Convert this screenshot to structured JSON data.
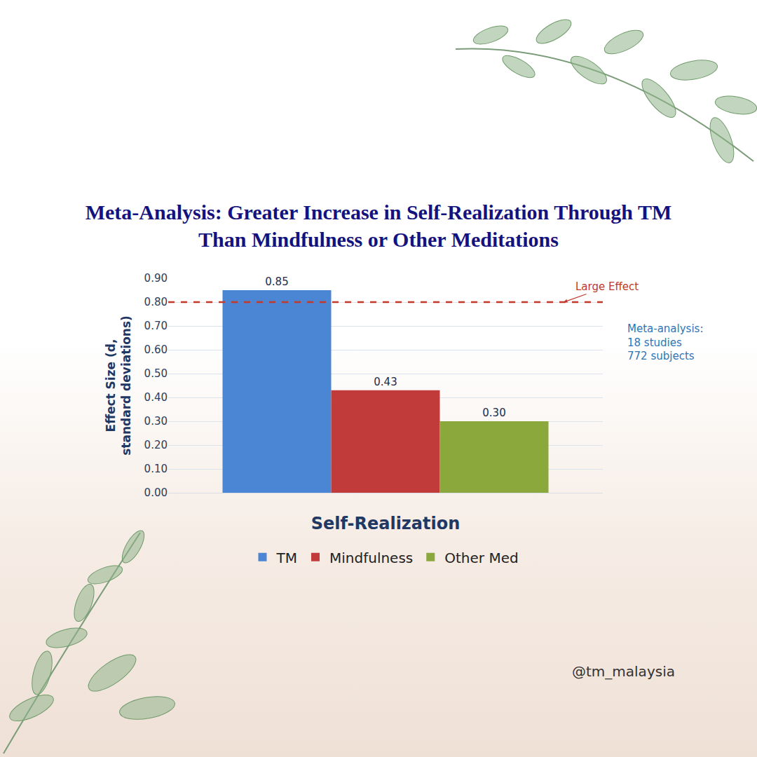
{
  "chart_data": {
    "type": "bar",
    "title": "Meta-Analysis: Greater Increase in Self-Realization Through TM Than Mindfulness or Other Meditations",
    "y_label": "Effect Size (d, standard deviations)",
    "categories": [
      "Self-Realization"
    ],
    "series": [
      {
        "name": "TM",
        "color": "#4a86d4",
        "values": [
          0.85
        ],
        "value_labels": [
          "0.85"
        ]
      },
      {
        "name": "Mindfulness",
        "color": "#c23b3b",
        "values": [
          0.43
        ],
        "value_labels": [
          "0.43"
        ]
      },
      {
        "name": "Other Med",
        "color": "#8aa83c",
        "values": [
          0.3
        ],
        "value_labels": [
          "0.30"
        ]
      }
    ],
    "ylim": [
      0,
      0.9
    ],
    "yticks": [
      {
        "value": 0,
        "label": "0.00"
      },
      {
        "value": 0.1,
        "label": "0.10"
      },
      {
        "value": 0.2,
        "label": "0.20"
      },
      {
        "value": 0.3,
        "label": "0.30"
      },
      {
        "value": 0.4,
        "label": "0.40"
      },
      {
        "value": 0.5,
        "label": "0.50"
      },
      {
        "value": 0.6,
        "label": "0.60"
      },
      {
        "value": 0.7,
        "label": "0.70"
      },
      {
        "value": 0.8,
        "label": "0.80"
      },
      {
        "value": 0.9,
        "label": "0.90"
      }
    ],
    "grid": true,
    "data_labels": true,
    "legend": "bottom",
    "reference_lines": [
      {
        "value": 0.8,
        "label": "Large Effect",
        "color": "#c0392b",
        "line_style": "dashed"
      }
    ],
    "annotation": "Meta-analysis:\n18 studies\n772 subjects",
    "credit": "@tm_malaysia"
  }
}
